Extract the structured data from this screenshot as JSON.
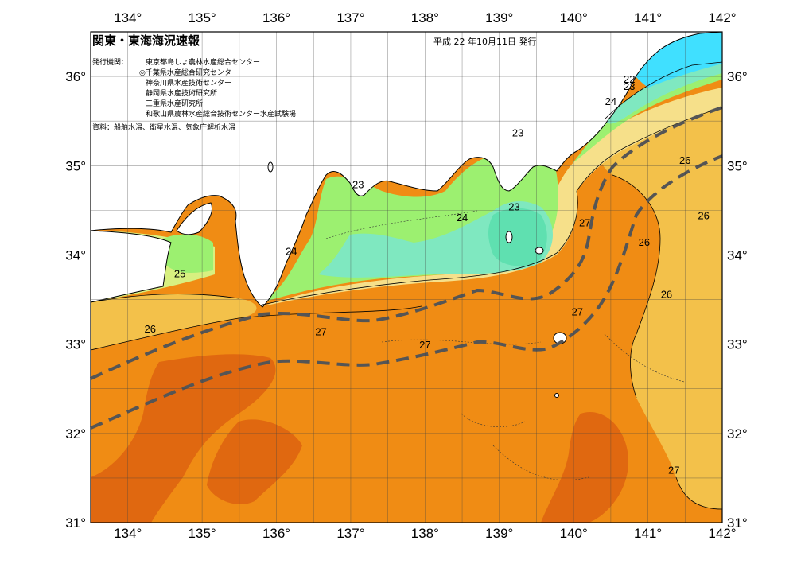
{
  "title": "関東・東海海況速報",
  "issue_date": "平成 22 年10月11日 発行",
  "issuer_label": "発行機関：",
  "issuers": [
    "東京都島しょ農林水産総合センター",
    "◎千葉県水産総合研究センター",
    "神奈川県水産技術センター",
    "静岡県水産技術研究所",
    "三重県水産研究所",
    "和歌山県農林水産総合技術センター水産試験場"
  ],
  "source_note": "資料：船舶水温、衛星水温、気象庁解析水温",
  "axes": {
    "lon_labels": [
      "134°",
      "135°",
      "136°",
      "137°",
      "138°",
      "139°",
      "140°",
      "141°",
      "142°"
    ],
    "lat_labels": [
      "36°",
      "35°",
      "34°",
      "33°",
      "32°",
      "31°"
    ],
    "lon_range": [
      133.5,
      142
    ],
    "lat_range": [
      31,
      36.5
    ]
  },
  "contour_labels": [
    {
      "text": "22",
      "lon": 140.75,
      "lat": 35.93
    },
    {
      "text": "23",
      "lon": 140.75,
      "lat": 35.85
    },
    {
      "text": "24",
      "lon": 140.5,
      "lat": 35.68
    },
    {
      "text": "23",
      "lon": 139.25,
      "lat": 35.33
    },
    {
      "text": "23",
      "lon": 137.1,
      "lat": 34.75
    },
    {
      "text": "23",
      "lon": 139.2,
      "lat": 34.5
    },
    {
      "text": "24",
      "lon": 138.5,
      "lat": 34.38
    },
    {
      "text": "24",
      "lon": 136.2,
      "lat": 34.0
    },
    {
      "text": "25",
      "lon": 134.7,
      "lat": 33.75
    },
    {
      "text": "26",
      "lon": 134.3,
      "lat": 33.13
    },
    {
      "text": "27",
      "lon": 136.6,
      "lat": 33.1
    },
    {
      "text": "27",
      "lon": 138.0,
      "lat": 32.95
    },
    {
      "text": "27",
      "lon": 140.15,
      "lat": 34.32
    },
    {
      "text": "27",
      "lon": 140.05,
      "lat": 33.32
    },
    {
      "text": "26",
      "lon": 141.5,
      "lat": 35.02
    },
    {
      "text": "26",
      "lon": 141.75,
      "lat": 34.4
    },
    {
      "text": "26",
      "lon": 140.95,
      "lat": 34.1
    },
    {
      "text": "26",
      "lon": 141.25,
      "lat": 33.52
    },
    {
      "text": "27",
      "lon": 141.35,
      "lat": 31.55
    }
  ],
  "colors": {
    "land": "#ffffff",
    "c22": "#40e0ff",
    "c23": "#7fe8c0",
    "c24": "#9cf070",
    "c25": "#d8f080",
    "c26": "#f3c14a",
    "c27": "#f08c14",
    "c28": "#e06810",
    "kuroshio": "#555555"
  }
}
